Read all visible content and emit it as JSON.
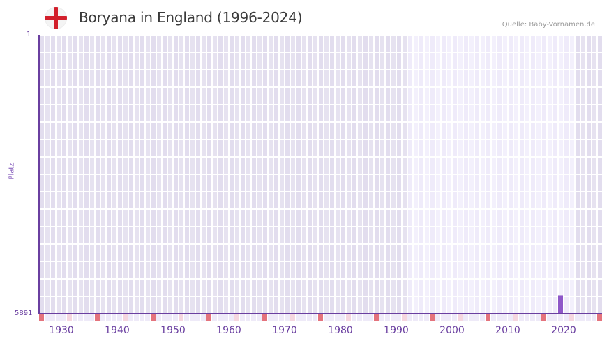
{
  "header": {
    "title": "Boryana in England (1996-2024)",
    "flag_icon": "england-flag-icon",
    "source": "Quelle: Baby-Vornamen.de"
  },
  "colors": {
    "grid_dark": "#e3dfee",
    "grid_light": "#f1eefb",
    "grid_line": "#f7f5fb",
    "axis": "#6a3fa0",
    "bar": "#8e57c8",
    "marker_decade": "#e4737c",
    "marker_half": "#f5d6df",
    "marker_year": "#eeeaf8"
  },
  "chart_data": {
    "type": "bar",
    "title": "Boryana in England (1996-2024)",
    "xlabel": "",
    "ylabel": "Platz",
    "y_inverted": true,
    "ylim": [
      1,
      5891
    ],
    "xlim": [
      1928,
      2028
    ],
    "x_ticks": [
      "1930",
      "1940",
      "1950",
      "1960",
      "1970",
      "1980",
      "1990",
      "2000",
      "2010",
      "2020"
    ],
    "y_ticks": [
      "1",
      "5891"
    ],
    "highlight_range": [
      1994,
      2023
    ],
    "grid": true,
    "legend": null,
    "series": [
      {
        "name": "Boryana",
        "points": [
          {
            "year": 2021,
            "rank": 5500
          }
        ]
      }
    ]
  },
  "axis": {
    "y_top": "1",
    "y_bottom": "5891",
    "y_title": "Platz"
  }
}
